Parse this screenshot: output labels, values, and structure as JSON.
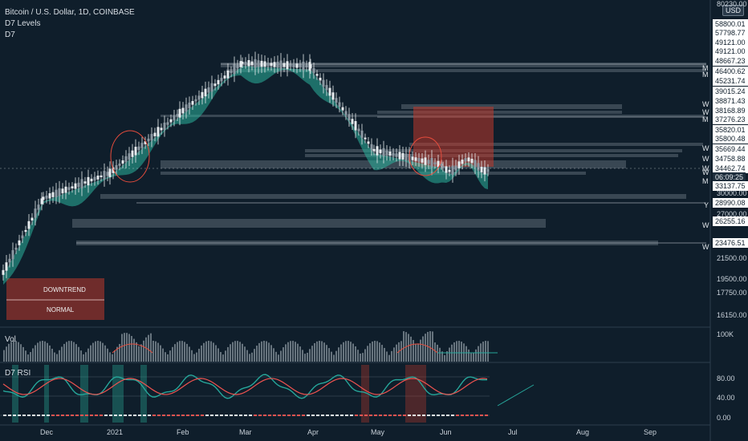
{
  "header": {
    "symbol_line": "Bitcoin / U.S. Dollar, 1D, COINBASE",
    "indicator_1": "D7 Levels",
    "indicator_2": "D7"
  },
  "currency_badge": "USD",
  "price_axis_top": "80230.00",
  "price_boxes": [
    "58800.01",
    "57798.77",
    "49121.00",
    "49121.00",
    "48667.23",
    "46400.62",
    "45231.74",
    "39015.24",
    "38871.43",
    "38168.89",
    "37276.23",
    "35820.01",
    "35800.48",
    "35669.44",
    "34758.88",
    "34462.74",
    "06:09:25",
    "33137.75",
    "28990.08",
    "26255.16",
    "23476.51"
  ],
  "price_axis_labels": [
    "30000.00",
    "27000.00",
    "21500.00",
    "19500.00",
    "17750.00",
    "16150.00"
  ],
  "level_markers": [
    "M",
    "M",
    "W",
    "W",
    "M",
    "W",
    "W",
    "W",
    "W",
    "M",
    "Y",
    "W",
    "W"
  ],
  "overlay_boxes": {
    "downtrend": "DOWNTREND",
    "normal": "NORMAL"
  },
  "volume_panel": {
    "title": "Vol",
    "axis_label": "100K"
  },
  "rsi_panel": {
    "title": "D7 RSI",
    "axis_labels": [
      "80.00",
      "40.00",
      "0.00"
    ]
  },
  "x_axis": [
    "Dec",
    "2021",
    "Feb",
    "Mar",
    "Apr",
    "May",
    "Jun",
    "Jul",
    "Aug",
    "Sep"
  ],
  "colors": {
    "background": "#0f1e2b",
    "up": "#26a69a",
    "down": "#ef5350",
    "cloud_up": "#2bb39c",
    "cloud_down": "#c0392b",
    "level_band": "#8a949e"
  },
  "chart_data": {
    "type": "candlestick",
    "title": "Bitcoin / U.S. Dollar, 1D, COINBASE",
    "x_ticks": [
      "Dec",
      "2021",
      "Feb",
      "Mar",
      "Apr",
      "May",
      "Jun",
      "Jul",
      "Aug",
      "Sep"
    ],
    "y_scale": "log",
    "y_range": [
      15000,
      80230
    ],
    "monthly_approx_close": [
      {
        "month": "Nov 2020",
        "close": 19700
      },
      {
        "month": "Dec 2020",
        "close": 29000
      },
      {
        "month": "Jan 2021",
        "close": 33100
      },
      {
        "month": "Feb 2021",
        "close": 45200
      },
      {
        "month": "Mar 2021",
        "close": 58800
      },
      {
        "month": "Apr 2021",
        "close": 57700
      },
      {
        "month": "May 2021",
        "close": 37300
      },
      {
        "month": "Jun 2021",
        "close": 34500
      }
    ],
    "horizontal_levels": [
      48667.23,
      46400.62,
      38871.43,
      38168.89,
      37276.23,
      35820.01,
      35800.48,
      35669.44,
      34758.88,
      34462.74,
      33137.75,
      28990.08,
      26255.16,
      23476.51
    ],
    "rsi_range": [
      0,
      100
    ]
  }
}
